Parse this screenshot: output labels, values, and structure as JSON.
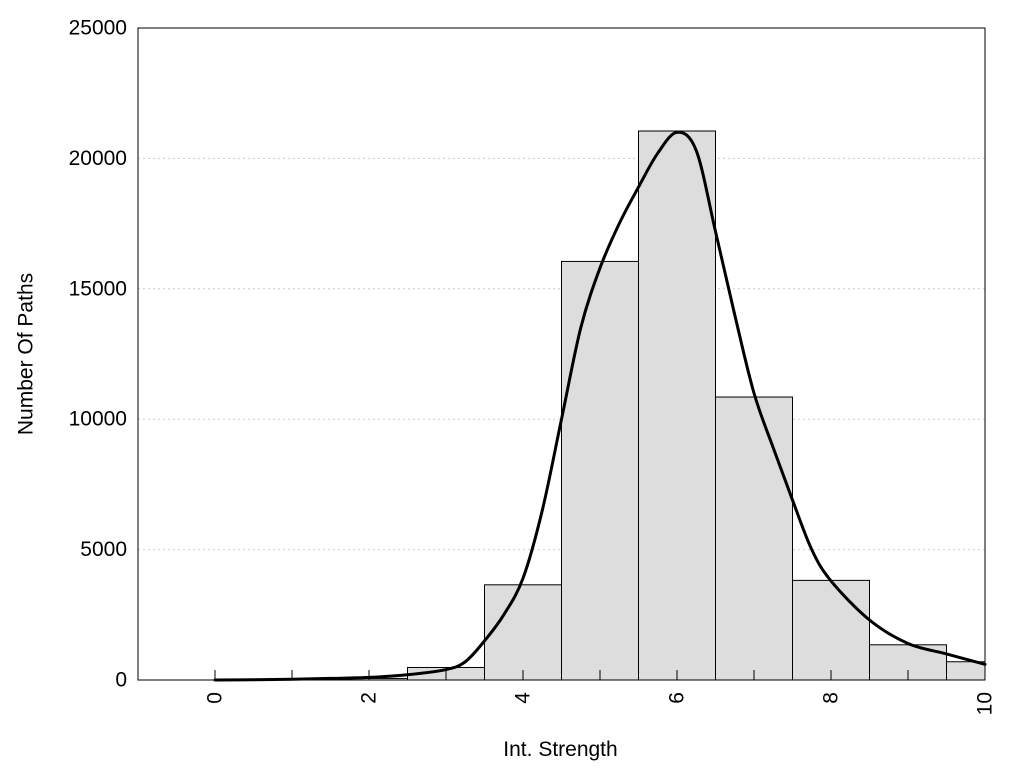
{
  "chart_data": {
    "type": "bar",
    "title": "",
    "xlabel": "Int. Strength",
    "ylabel": "Number Of Paths",
    "xlim": [
      -1,
      10
    ],
    "ylim": [
      0,
      25000
    ],
    "x_ticks": [
      0,
      2,
      4,
      6,
      8,
      10
    ],
    "y_ticks": [
      0,
      5000,
      10000,
      15000,
      20000,
      25000
    ],
    "grid": "horizontal dotted",
    "legend": "none",
    "colors": {
      "bar_fill": "#dddddd",
      "bar_stroke": "#000000",
      "curve": "#000000",
      "grid": "#cccccc"
    },
    "bars": {
      "x": [
        0,
        1,
        2,
        3,
        4,
        5,
        6,
        7,
        8,
        9,
        10
      ],
      "width": 1,
      "values": [
        0,
        0,
        60,
        480,
        3650,
        16050,
        21050,
        10850,
        3820,
        1350,
        700
      ]
    },
    "curve": {
      "x": [
        0,
        0.5,
        1,
        1.5,
        2,
        2.5,
        3,
        3.25,
        3.5,
        3.75,
        4,
        4.25,
        4.5,
        4.75,
        5,
        5.25,
        5.5,
        5.75,
        6,
        6.25,
        6.5,
        6.75,
        7,
        7.25,
        7.5,
        7.75,
        8,
        8.5,
        9,
        9.5,
        10
      ],
      "y": [
        0,
        10,
        30,
        60,
        100,
        200,
        400,
        700,
        1500,
        2500,
        3900,
        6500,
        10000,
        13500,
        15800,
        17500,
        18900,
        20200,
        21000,
        20300,
        17200,
        14000,
        11000,
        8900,
        6900,
        5000,
        3800,
        2300,
        1400,
        1000,
        600
      ]
    }
  }
}
